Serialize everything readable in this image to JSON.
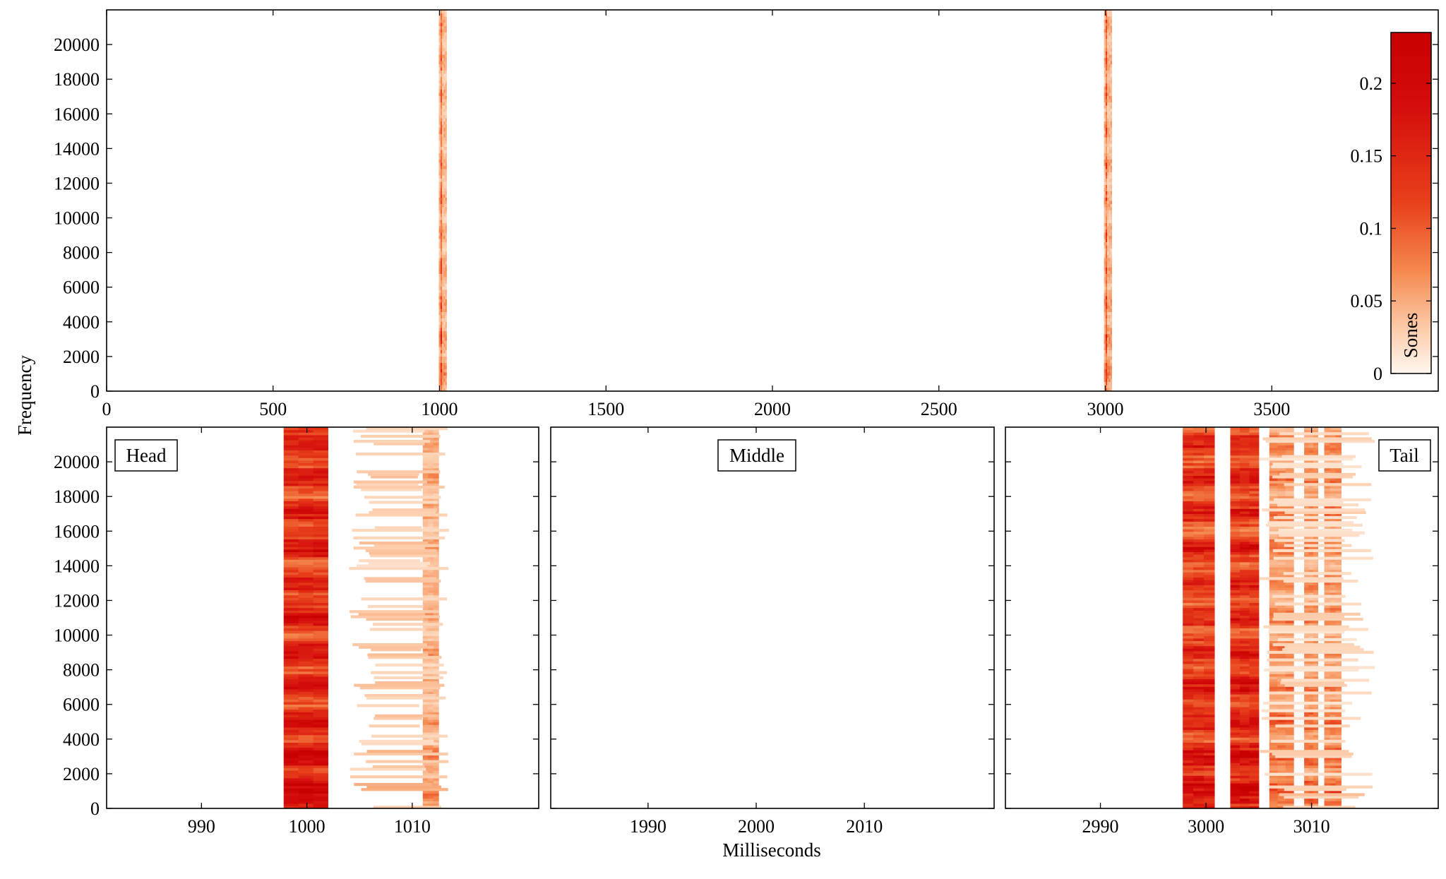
{
  "chart_data": [
    {
      "id": "overview",
      "type": "heatmap",
      "xlim": [
        0,
        4000
      ],
      "ylim": [
        0,
        22000
      ],
      "x_ticks": [
        0,
        500,
        1000,
        1500,
        2000,
        2500,
        3000,
        3500
      ],
      "y_ticks": [
        0,
        2000,
        4000,
        6000,
        8000,
        10000,
        12000,
        14000,
        16000,
        18000,
        20000
      ],
      "bursts": [
        {
          "start": 998,
          "end": 1022,
          "peak": 0.22,
          "structure": "vertical band, strongest at low frequency"
        },
        {
          "start": 2996,
          "end": 3020,
          "peak": 0.23,
          "structure": "vertical band, strongest at low frequency"
        }
      ]
    },
    {
      "id": "head",
      "type": "heatmap",
      "label": "Head",
      "xlim": [
        981,
        1022
      ],
      "ylim": [
        0,
        22000
      ],
      "x_ticks": [
        990,
        1000,
        1010
      ],
      "y_ticks": [
        0,
        2000,
        4000,
        6000,
        8000,
        10000,
        12000,
        14000,
        16000,
        18000,
        20000
      ],
      "columns": [
        {
          "start": 997.8,
          "end": 1002.0,
          "strength": 0.75
        },
        {
          "start": 1011.0,
          "end": 1012.5,
          "strength": 0.25
        },
        {
          "start": 1004.0,
          "end": 1013.5,
          "strength": 0.16
        }
      ]
    },
    {
      "id": "middle",
      "type": "heatmap",
      "label": "Middle",
      "xlim": [
        1981,
        2022
      ],
      "ylim": [
        0,
        22000
      ],
      "x_ticks": [
        1990,
        2000,
        2010
      ],
      "y_ticks": [
        0,
        2000,
        4000,
        6000,
        8000,
        10000,
        12000,
        14000,
        16000,
        18000,
        20000
      ],
      "columns": []
    },
    {
      "id": "tail",
      "type": "heatmap",
      "label": "Tail",
      "xlim": [
        2981,
        3022
      ],
      "ylim": [
        0,
        22000
      ],
      "x_ticks": [
        2990,
        3000,
        3010
      ],
      "y_ticks": [
        0,
        2000,
        4000,
        6000,
        8000,
        10000,
        12000,
        14000,
        16000,
        18000,
        20000
      ],
      "columns": [
        {
          "start": 2997.8,
          "end": 3000.8,
          "strength": 0.7
        },
        {
          "start": 3002.3,
          "end": 3005.0,
          "strength": 0.7
        },
        {
          "start": 3006.0,
          "end": 3008.3,
          "strength": 0.35
        },
        {
          "start": 3009.3,
          "end": 3010.6,
          "strength": 0.35
        },
        {
          "start": 3011.2,
          "end": 3012.8,
          "strength": 0.35
        },
        {
          "start": 3005.0,
          "end": 3016.0,
          "strength": 0.12
        }
      ]
    }
  ],
  "colorbar": {
    "label": "Sones",
    "min": 0,
    "max": 0.235,
    "ticks": [
      0,
      0.05,
      0.1,
      0.15,
      0.2
    ],
    "tick_labels": [
      "0",
      "0.05",
      "0.1",
      "0.15",
      "0.2"
    ],
    "colors": [
      "#fff7f0",
      "#fdd0b0",
      "#f5894f",
      "#e8401b",
      "#d40b0b",
      "#c80000"
    ]
  },
  "labels": {
    "ylabel": "Frequency",
    "xlabel": "Milliseconds"
  }
}
